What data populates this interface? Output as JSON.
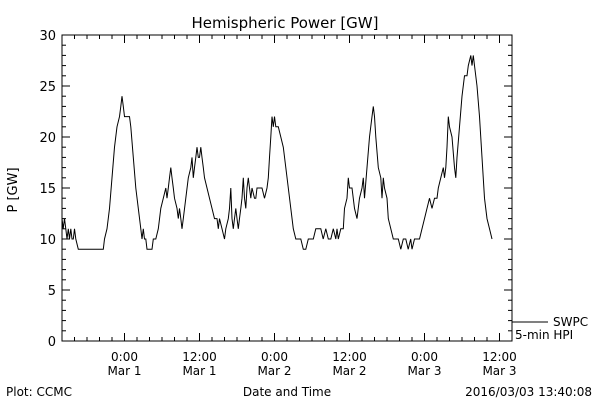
{
  "chart_data": {
    "type": "line",
    "title": "Hemispheric Power [GW]",
    "ylabel": "P [GW]",
    "xlabel": "Date and Time",
    "ylim": [
      0,
      30
    ],
    "xlim_hours": [
      -10,
      62
    ],
    "yticks": [
      {
        "value": 0,
        "label": "0"
      },
      {
        "value": 5,
        "label": "5"
      },
      {
        "value": 10,
        "label": "10"
      },
      {
        "value": 15,
        "label": "15"
      },
      {
        "value": 20,
        "label": "20"
      },
      {
        "value": 25,
        "label": "25"
      },
      {
        "value": 30,
        "label": "30"
      }
    ],
    "xticks": [
      {
        "hour": 0,
        "time": "0:00",
        "date": "Mar 1"
      },
      {
        "hour": 12,
        "time": "12:00",
        "date": "Mar 1"
      },
      {
        "hour": 24,
        "time": "0:00",
        "date": "Mar 2"
      },
      {
        "hour": 36,
        "time": "12:00",
        "date": "Mar 2"
      },
      {
        "hour": 48,
        "time": "0:00",
        "date": "Mar 3"
      },
      {
        "hour": 60,
        "time": "12:00",
        "date": "Mar 3"
      }
    ],
    "legend": {
      "position": "bottom-right",
      "lines": [
        "SWPC",
        "5-min HPI"
      ]
    },
    "grid": false,
    "series": [
      {
        "name": "SWPC 5-min HPI",
        "color": "#000000",
        "points": [
          [
            -10.0,
            12
          ],
          [
            -9.8,
            11
          ],
          [
            -9.6,
            12
          ],
          [
            -9.4,
            11
          ],
          [
            -9.2,
            10
          ],
          [
            -9.0,
            11
          ],
          [
            -8.8,
            10
          ],
          [
            -8.6,
            11
          ],
          [
            -8.4,
            10
          ],
          [
            -8.2,
            10
          ],
          [
            -8.0,
            11
          ],
          [
            -7.8,
            10
          ],
          [
            -7.4,
            9
          ],
          [
            -7.0,
            9
          ],
          [
            -6.0,
            9
          ],
          [
            -5.0,
            9
          ],
          [
            -4.0,
            9
          ],
          [
            -3.4,
            9
          ],
          [
            -3.2,
            10
          ],
          [
            -2.8,
            11
          ],
          [
            -2.4,
            13
          ],
          [
            -2.0,
            16
          ],
          [
            -1.6,
            19
          ],
          [
            -1.2,
            21
          ],
          [
            -0.8,
            22
          ],
          [
            -0.6,
            23
          ],
          [
            -0.4,
            24
          ],
          [
            -0.2,
            23
          ],
          [
            0.0,
            22
          ],
          [
            0.4,
            22
          ],
          [
            0.8,
            22
          ],
          [
            1.0,
            21
          ],
          [
            1.4,
            18
          ],
          [
            1.8,
            15
          ],
          [
            2.2,
            13
          ],
          [
            2.6,
            11
          ],
          [
            2.8,
            10
          ],
          [
            3.0,
            11
          ],
          [
            3.2,
            10
          ],
          [
            3.4,
            10
          ],
          [
            3.6,
            9
          ],
          [
            4.0,
            9
          ],
          [
            4.4,
            9
          ],
          [
            4.6,
            10
          ],
          [
            5.0,
            10
          ],
          [
            5.4,
            11
          ],
          [
            5.8,
            13
          ],
          [
            6.2,
            14
          ],
          [
            6.6,
            15
          ],
          [
            6.8,
            14
          ],
          [
            7.0,
            15
          ],
          [
            7.2,
            16
          ],
          [
            7.4,
            17
          ],
          [
            7.6,
            16
          ],
          [
            7.8,
            15
          ],
          [
            8.0,
            14
          ],
          [
            8.4,
            13
          ],
          [
            8.6,
            12
          ],
          [
            8.8,
            13
          ],
          [
            9.0,
            12
          ],
          [
            9.2,
            11
          ],
          [
            9.4,
            12
          ],
          [
            9.8,
            14
          ],
          [
            10.2,
            16
          ],
          [
            10.6,
            17
          ],
          [
            10.8,
            18
          ],
          [
            11.0,
            16
          ],
          [
            11.2,
            17
          ],
          [
            11.4,
            18
          ],
          [
            11.6,
            19
          ],
          [
            11.8,
            18
          ],
          [
            12.0,
            18
          ],
          [
            12.2,
            19
          ],
          [
            12.4,
            18
          ],
          [
            12.6,
            17
          ],
          [
            12.8,
            16
          ],
          [
            13.2,
            15
          ],
          [
            13.6,
            14
          ],
          [
            14.0,
            13
          ],
          [
            14.4,
            12
          ],
          [
            14.8,
            12
          ],
          [
            15.0,
            11
          ],
          [
            15.2,
            12
          ],
          [
            15.6,
            11
          ],
          [
            16.0,
            10
          ],
          [
            16.2,
            11
          ],
          [
            16.6,
            12
          ],
          [
            16.8,
            13
          ],
          [
            17.0,
            15
          ],
          [
            17.2,
            12
          ],
          [
            17.4,
            11
          ],
          [
            17.6,
            12
          ],
          [
            17.8,
            13
          ],
          [
            18.0,
            12
          ],
          [
            18.2,
            11
          ],
          [
            18.4,
            12
          ],
          [
            18.6,
            13
          ],
          [
            18.8,
            14
          ],
          [
            19.0,
            16
          ],
          [
            19.2,
            14
          ],
          [
            19.4,
            13
          ],
          [
            19.6,
            15
          ],
          [
            19.8,
            16
          ],
          [
            20.0,
            15
          ],
          [
            20.2,
            14
          ],
          [
            20.4,
            15
          ],
          [
            20.8,
            14
          ],
          [
            21.0,
            14
          ],
          [
            21.2,
            15
          ],
          [
            21.6,
            15
          ],
          [
            22.0,
            15
          ],
          [
            22.4,
            14
          ],
          [
            22.8,
            15
          ],
          [
            23.0,
            16
          ],
          [
            23.2,
            18
          ],
          [
            23.4,
            20
          ],
          [
            23.6,
            22
          ],
          [
            23.8,
            21
          ],
          [
            24.0,
            22
          ],
          [
            24.2,
            21
          ],
          [
            24.6,
            21
          ],
          [
            25.0,
            20
          ],
          [
            25.4,
            19
          ],
          [
            25.8,
            17
          ],
          [
            26.2,
            15
          ],
          [
            26.6,
            13
          ],
          [
            27.0,
            11
          ],
          [
            27.4,
            10
          ],
          [
            27.8,
            10
          ],
          [
            28.2,
            10
          ],
          [
            28.6,
            9
          ],
          [
            29.0,
            9
          ],
          [
            29.4,
            10
          ],
          [
            29.8,
            10
          ],
          [
            30.2,
            10
          ],
          [
            30.6,
            11
          ],
          [
            31.0,
            11
          ],
          [
            31.4,
            11
          ],
          [
            31.8,
            10
          ],
          [
            32.2,
            11
          ],
          [
            32.6,
            10
          ],
          [
            33.0,
            10
          ],
          [
            33.4,
            11
          ],
          [
            33.8,
            10
          ],
          [
            34.0,
            11
          ],
          [
            34.2,
            10
          ],
          [
            34.6,
            11
          ],
          [
            35.0,
            11
          ],
          [
            35.2,
            13
          ],
          [
            35.6,
            14
          ],
          [
            35.8,
            16
          ],
          [
            36.0,
            15
          ],
          [
            36.4,
            15
          ],
          [
            36.8,
            13
          ],
          [
            37.2,
            12
          ],
          [
            37.6,
            14
          ],
          [
            38.0,
            15
          ],
          [
            38.2,
            16
          ],
          [
            38.4,
            14
          ],
          [
            38.8,
            17
          ],
          [
            39.2,
            20
          ],
          [
            39.6,
            22
          ],
          [
            39.8,
            23
          ],
          [
            40.0,
            22
          ],
          [
            40.2,
            20
          ],
          [
            40.6,
            17
          ],
          [
            41.0,
            16
          ],
          [
            41.2,
            14
          ],
          [
            41.4,
            16
          ],
          [
            41.6,
            15
          ],
          [
            42.0,
            14
          ],
          [
            42.2,
            12
          ],
          [
            42.6,
            11
          ],
          [
            43.0,
            10
          ],
          [
            43.4,
            10
          ],
          [
            43.8,
            10
          ],
          [
            44.2,
            9
          ],
          [
            44.6,
            10
          ],
          [
            45.0,
            10
          ],
          [
            45.4,
            9
          ],
          [
            45.8,
            10
          ],
          [
            46.0,
            9
          ],
          [
            46.4,
            10
          ],
          [
            46.8,
            10
          ],
          [
            47.2,
            10
          ],
          [
            47.6,
            11
          ],
          [
            48.0,
            12
          ],
          [
            48.4,
            13
          ],
          [
            48.8,
            14
          ],
          [
            49.2,
            13
          ],
          [
            49.6,
            14
          ],
          [
            50.0,
            14
          ],
          [
            50.2,
            15
          ],
          [
            50.6,
            16
          ],
          [
            51.0,
            17
          ],
          [
            51.2,
            16
          ],
          [
            51.4,
            17
          ],
          [
            51.6,
            19
          ],
          [
            51.8,
            22
          ],
          [
            52.0,
            21
          ],
          [
            52.4,
            20
          ],
          [
            52.8,
            17
          ],
          [
            53.0,
            16
          ],
          [
            53.2,
            18
          ],
          [
            53.6,
            21
          ],
          [
            54.0,
            24
          ],
          [
            54.4,
            26
          ],
          [
            54.8,
            26
          ],
          [
            55.0,
            27
          ],
          [
            55.4,
            28
          ],
          [
            55.6,
            27
          ],
          [
            55.8,
            28
          ],
          [
            56.0,
            27
          ],
          [
            56.4,
            25
          ],
          [
            56.8,
            22
          ],
          [
            57.2,
            18
          ],
          [
            57.6,
            14
          ],
          [
            58.0,
            12
          ],
          [
            58.4,
            11
          ],
          [
            58.8,
            10
          ]
        ]
      }
    ]
  },
  "footer": {
    "left": "Plot: CCMC",
    "center": "Date and Time",
    "right": "2016/03/03 13:40:08"
  }
}
